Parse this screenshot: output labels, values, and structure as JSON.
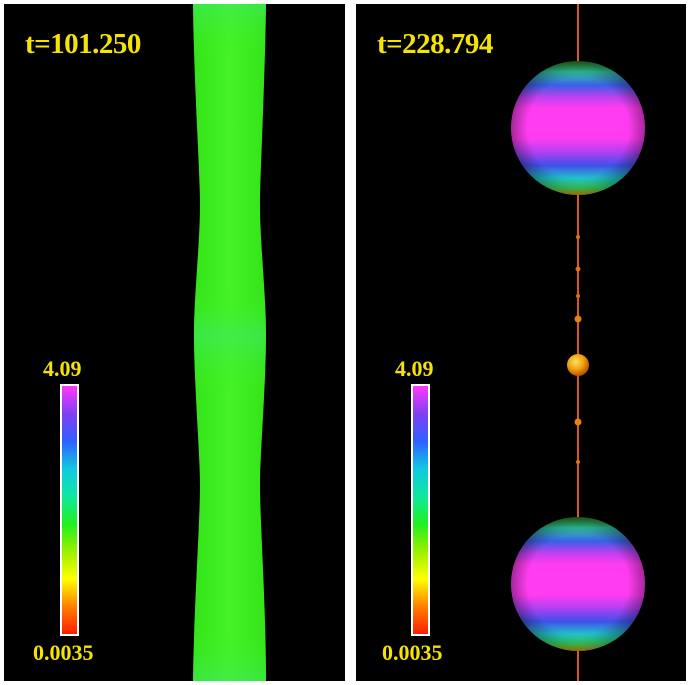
{
  "panels": [
    {
      "time_label": "t=101.250",
      "colorbar": {
        "max_label": "4.09",
        "min_label": "0.0035"
      }
    },
    {
      "time_label": "t=228.794",
      "colorbar": {
        "max_label": "4.09",
        "min_label": "0.0035"
      }
    }
  ],
  "colors": {
    "background": "#000000",
    "label_yellow": "#f5e400",
    "jet_green": "#3ef01a",
    "sphere_magenta": "#ff3cf0",
    "sphere_blue": "#4a50e8",
    "thread_orange": "#d85a10",
    "satellite_orange": "#f0a010"
  },
  "colormap": [
    "#ff1e00",
    "#ff8000",
    "#ffff00",
    "#9af000",
    "#20f020",
    "#10e8a0",
    "#10c8e0",
    "#3060ff",
    "#8040f0",
    "#ff38ff"
  ]
}
